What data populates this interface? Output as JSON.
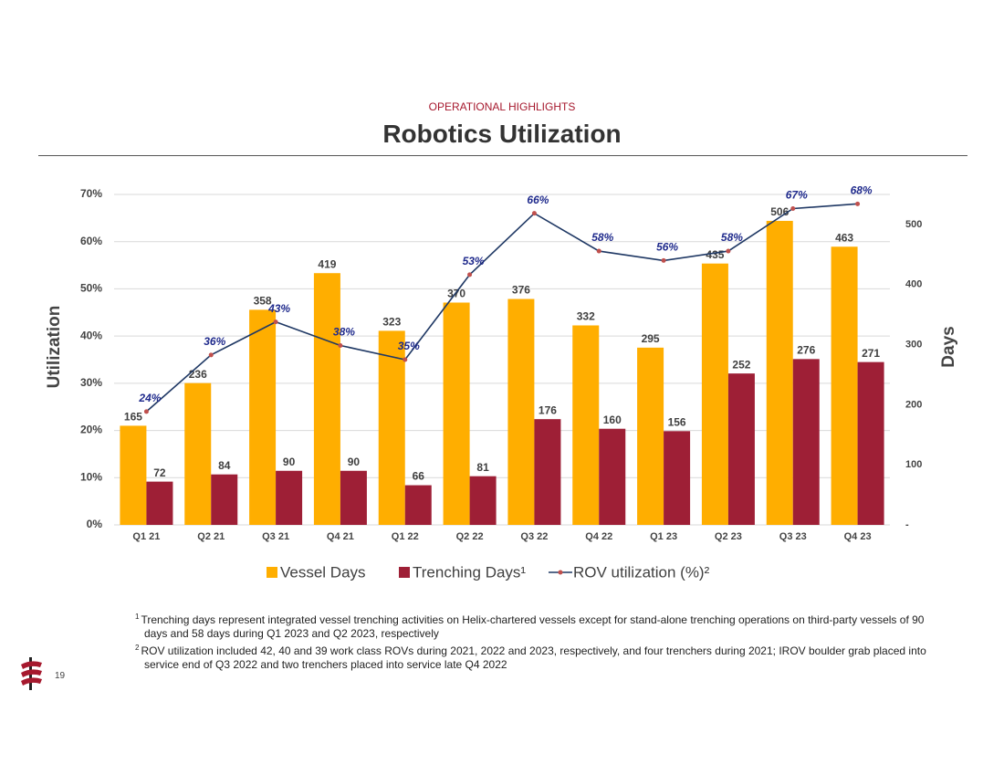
{
  "header": {
    "kicker": "OPERATIONAL HIGHLIGHTS",
    "title": "Robotics Utilization"
  },
  "chart_data": {
    "type": "bar-line",
    "y_label": "Utilization",
    "y2_label": "Days",
    "categories": [
      "Q1 21",
      "Q2 21",
      "Q3 21",
      "Q4 21",
      "Q1 22",
      "Q2 22",
      "Q3 22",
      "Q4 22",
      "Q1 23",
      "Q2 23",
      "Q3 23",
      "Q4 23"
    ],
    "ylim": [
      0,
      70
    ],
    "yticks": [
      {
        "value": 0,
        "label": "0%"
      },
      {
        "value": 10,
        "label": "10%"
      },
      {
        "value": 20,
        "label": "20%"
      },
      {
        "value": 30,
        "label": "30%"
      },
      {
        "value": 40,
        "label": "40%"
      },
      {
        "value": 50,
        "label": "50%"
      },
      {
        "value": 60,
        "label": "60%"
      },
      {
        "value": 70,
        "label": "70%"
      }
    ],
    "y2lim": [
      0,
      550
    ],
    "y2ticks": [
      {
        "value": 0,
        "label": "-"
      },
      100,
      200,
      300,
      400,
      500
    ],
    "grid": true,
    "series": [
      {
        "name": "Vessel Days",
        "type": "bar",
        "axis": "y2",
        "color": "#FFAE00",
        "values": [
          165,
          236,
          358,
          419,
          323,
          370,
          376,
          332,
          295,
          435,
          506,
          463
        ]
      },
      {
        "name": "Trenching Days¹",
        "type": "bar",
        "axis": "y2",
        "color": "#9E1F36",
        "values": [
          72,
          84,
          90,
          90,
          66,
          81,
          176,
          160,
          156,
          252,
          276,
          271
        ]
      },
      {
        "name": "ROV utilization (%)²",
        "type": "line",
        "axis": "y",
        "color": "#1F3864",
        "marker_color": "#C0504D",
        "values": [
          24,
          36,
          43,
          38,
          35,
          53,
          66,
          58,
          56,
          58,
          67,
          68
        ],
        "value_labels": [
          "24%",
          "36%",
          "43%",
          "38%",
          "35%",
          "53%",
          "66%",
          "58%",
          "56%",
          "58%",
          "67%",
          "68%"
        ]
      }
    ]
  },
  "footnotes": [
    {
      "marker": "1",
      "text": "Trenching days represent integrated vessel trenching activities on Helix-chartered vessels except for stand-alone trenching operations on third-party vessels of 90 days and 58 days during Q1 2023 and Q2 2023, respectively"
    },
    {
      "marker": "2",
      "text": "ROV utilization included 42, 40 and 39 work class ROVs during 2021, 2022 and 2023, respectively, and four trenchers during 2021; IROV boulder grab placed into service end of Q3 2022 and two trenchers placed into service late Q4 2022"
    }
  ],
  "page_number": "19"
}
